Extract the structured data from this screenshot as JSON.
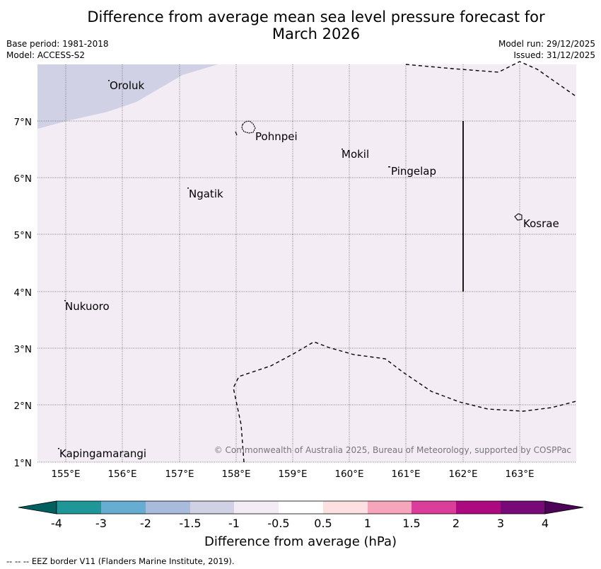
{
  "title_line1": "Difference from average mean sea level pressure forecast for",
  "title_line2": "March 2026",
  "meta": {
    "base_period": "Base period: 1981-2018",
    "model": "Model: ACCESS-S2",
    "model_run": "Model run: 29/12/2025",
    "issued": "Issued: 31/12/2025"
  },
  "map": {
    "lon_labels": [
      "155°E",
      "156°E",
      "157°E",
      "158°E",
      "159°E",
      "160°E",
      "161°E",
      "162°E",
      "163°E"
    ],
    "lat_labels": [
      "7°N",
      "6°N",
      "5°N",
      "4°N",
      "3°N",
      "2°N",
      "1°N"
    ],
    "places": [
      "Oroluk",
      "Pohnpei",
      "Mokil",
      "Pingelap",
      "Ngatik",
      "Kosrae",
      "Nukuoro",
      "Kapingamarangi"
    ],
    "credit": "© Commonwealth of Australia 2025, Bureau of Meteorology, supported by COSPPac",
    "colors": {
      "background": "#f3ecf5",
      "negative_shade": "#d0d1e5",
      "grid": "#555555"
    }
  },
  "colorbar": {
    "labels": [
      "-4",
      "-3",
      "-2",
      "-1.5",
      "-1",
      "-0.5",
      "0.5",
      "1",
      "1.5",
      "2",
      "3",
      "4"
    ],
    "colors": [
      "#005f5f",
      "#1f9698",
      "#67acd1",
      "#a9bbdb",
      "#d0d1e5",
      "#f3ecf5",
      "#ffffff",
      "#fde1e2",
      "#f6a5bb",
      "#db3d9a",
      "#ac0a7e",
      "#780a78",
      "#4d0358"
    ],
    "title": "Difference from average (hPa)"
  },
  "footnote": "--  --  -- EEZ border V11 (Flanders Marine Institute, 2019)."
}
